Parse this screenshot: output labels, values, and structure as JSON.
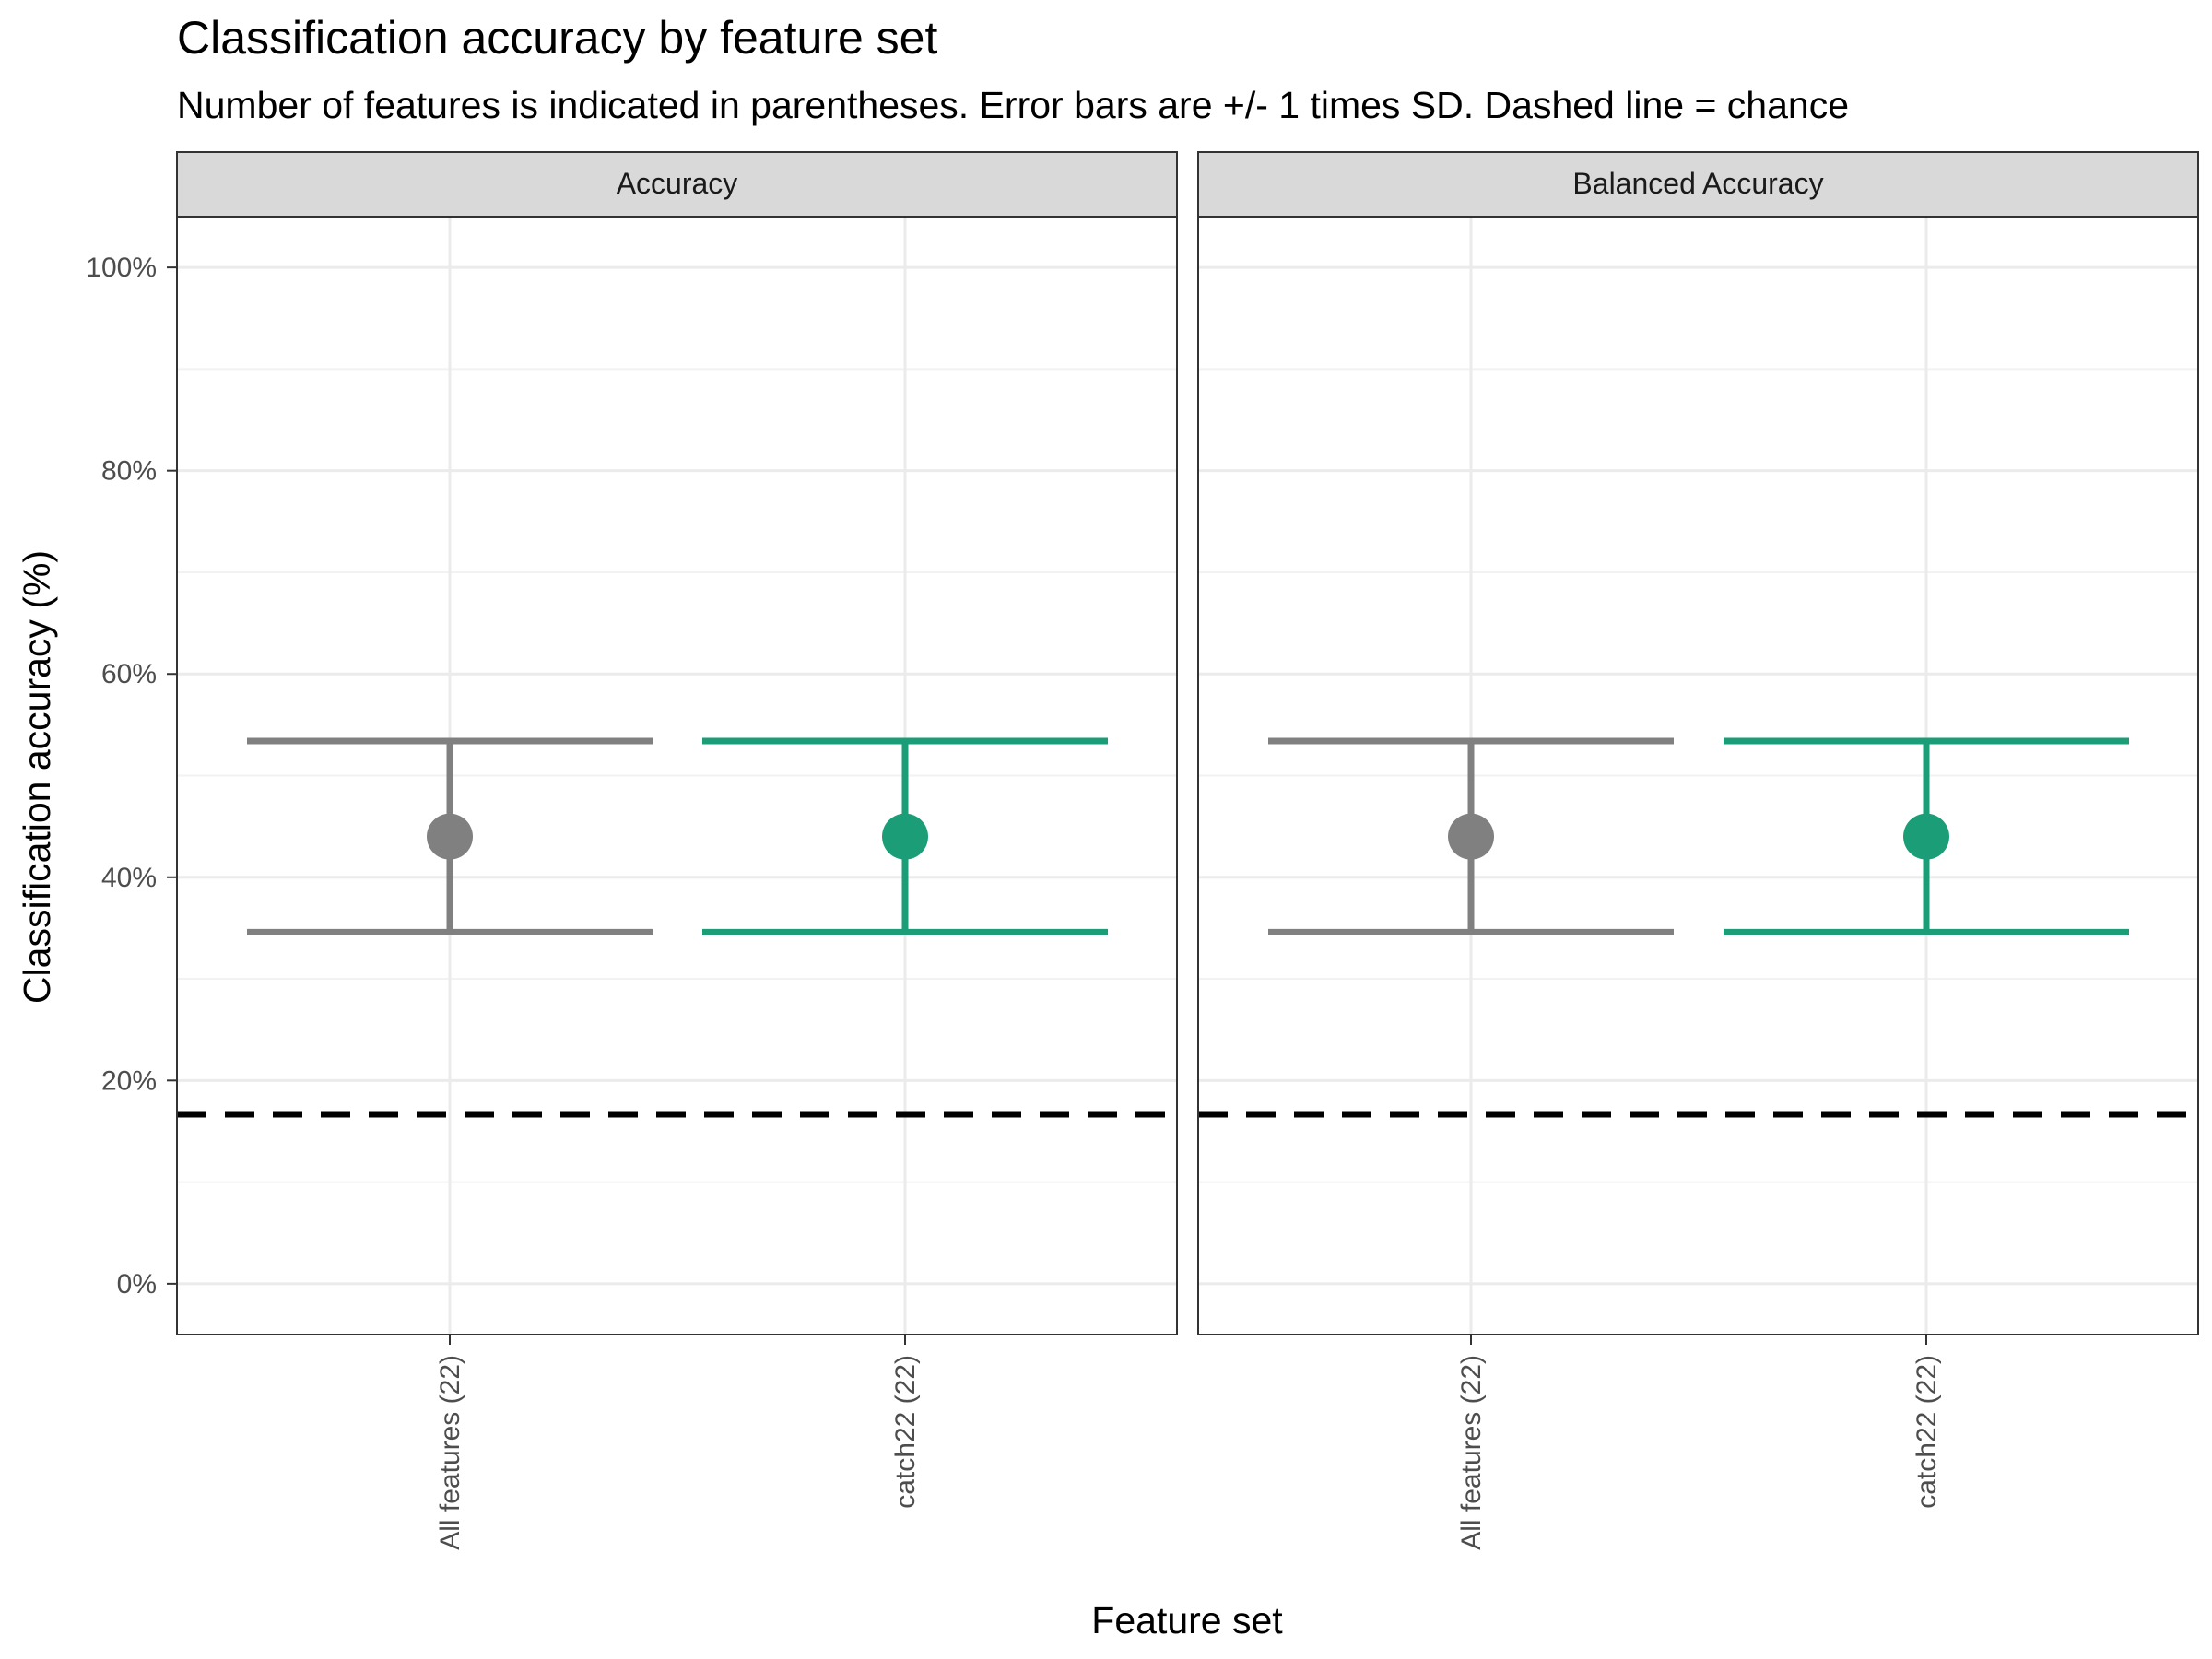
{
  "chart_data": {
    "type": "scatter",
    "title": "Classification accuracy by feature set",
    "subtitle": "Number of features is indicated in parentheses. Error bars are +/- 1 times SD. Dashed line = chance",
    "xlabel": "Feature set",
    "ylabel": "Classification accuracy (%)",
    "ylim": [
      -0.05,
      1.05
    ],
    "yticks": [
      0,
      0.2,
      0.4,
      0.6,
      0.8,
      1.0
    ],
    "ytick_labels": [
      "0%",
      "20%",
      "40%",
      "60%",
      "80%",
      "100%"
    ],
    "categories": [
      "All features (22)",
      "catch22 (22)"
    ],
    "chance_line": 0.1667,
    "grid": true,
    "legend": "none",
    "colors": {
      "All features (22)": "#808080",
      "catch22 (22)": "#1b9e77"
    },
    "panels": [
      {
        "label": "Accuracy",
        "points": [
          {
            "category": "All features (22)",
            "mean": 0.44,
            "lower": 0.346,
            "upper": 0.534
          },
          {
            "category": "catch22 (22)",
            "mean": 0.44,
            "lower": 0.346,
            "upper": 0.534
          }
        ]
      },
      {
        "label": "Balanced Accuracy",
        "points": [
          {
            "category": "All features (22)",
            "mean": 0.44,
            "lower": 0.346,
            "upper": 0.534
          },
          {
            "category": "catch22 (22)",
            "mean": 0.44,
            "lower": 0.346,
            "upper": 0.534
          }
        ]
      }
    ]
  }
}
